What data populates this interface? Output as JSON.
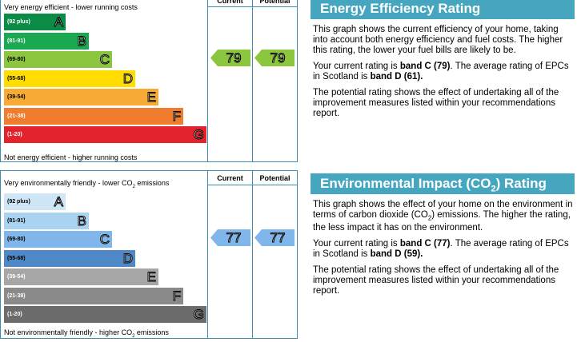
{
  "energy_chart": {
    "top_label": "Very energy efficient - lower running costs",
    "bottom_label": "Not energy efficient - higher running costs",
    "current_header": "Current",
    "potential_header": "Potential",
    "current_value": "79",
    "potential_value": "79",
    "bands": [
      {
        "range": "(92 plus)",
        "letter": "A",
        "color": "#0a8c46"
      },
      {
        "range": "(81-91)",
        "letter": "B",
        "color": "#1aa850"
      },
      {
        "range": "(69-80)",
        "letter": "C",
        "color": "#8cc63f"
      },
      {
        "range": "(55-68)",
        "letter": "D",
        "color": "#ffdd00"
      },
      {
        "range": "(39-54)",
        "letter": "E",
        "color": "#f7ab34"
      },
      {
        "range": "(21-38)",
        "letter": "F",
        "color": "#ef7d2d"
      },
      {
        "range": "(1-20)",
        "letter": "G",
        "color": "#e2232c"
      }
    ],
    "arrow_color": "#8cc63f"
  },
  "environment_chart": {
    "top_label_prefix": "Very environmentally friendly - lower CO",
    "top_label_sub": "2",
    "top_label_suffix": " emissions",
    "bottom_label_prefix": "Not environmentally friendly - higher CO",
    "bottom_label_sub": "2",
    "bottom_label_suffix": " emissions",
    "current_header": "Current",
    "potential_header": "Potential",
    "current_value": "77",
    "potential_value": "77",
    "bands": [
      {
        "range": "(92 plus)",
        "letter": "A",
        "color": "#cfe6f7"
      },
      {
        "range": "(81-91)",
        "letter": "B",
        "color": "#a9d3f1"
      },
      {
        "range": "(69-80)",
        "letter": "C",
        "color": "#80b6ea"
      },
      {
        "range": "(55-68)",
        "letter": "D",
        "color": "#4f88c7"
      },
      {
        "range": "(39-54)",
        "letter": "E",
        "color": "#a6a6a6"
      },
      {
        "range": "(21-38)",
        "letter": "F",
        "color": "#8a8a8a"
      },
      {
        "range": "(1-20)",
        "letter": "G",
        "color": "#6c6c6c"
      }
    ],
    "arrow_color": "#80b6ea"
  },
  "energy_panel": {
    "title": "Energy Efficiency Rating",
    "para1": "This graph shows the current efficiency of your home, taking into account both energy efficiency and fuel costs. The higher this rating, the lower your fuel bills are likely to be.",
    "para2_a": "Your current rating is ",
    "para2_b": "band C (79)",
    "para2_c": ". The average rating of EPCs in Scotland is ",
    "para2_d": "band D (61).",
    "para3": "The potential rating shows the effect of undertaking all of the improvement measures listed within your recommendations report."
  },
  "environment_panel": {
    "title_prefix": "Environmental Impact (CO",
    "title_sub": "2",
    "title_suffix": ") Rating",
    "para1_a": "This graph shows the effect of your home on the environment in terms of carbon dioxide (CO",
    "para1_sub": "2",
    "para1_b": ") emissions. The higher the rating, the less impact it has on the environment.",
    "para2_a": "Your current rating is ",
    "para2_b": "band C (77)",
    "para2_c": ". The average rating of EPCs in Scotland is ",
    "para2_d": "band D (59).",
    "para3": "The potential rating shows the effect of undertaking all of the improvement measures listed within your recommendations report."
  }
}
